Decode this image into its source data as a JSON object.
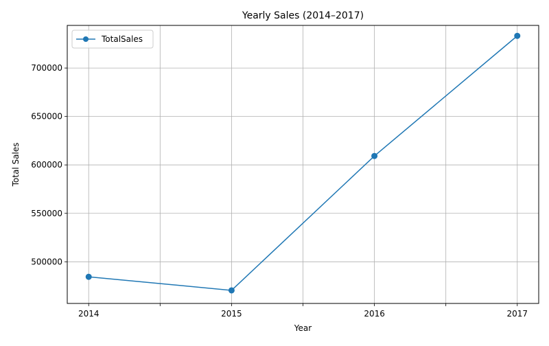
{
  "chart_data": {
    "type": "line",
    "title": "Yearly Sales (2014–2017)",
    "xlabel": "Year",
    "ylabel": "Total Sales",
    "categories": [
      "2014",
      "2015",
      "2016",
      "2017"
    ],
    "minor_x_ticks": [
      2014.5,
      2015.5,
      2016.5
    ],
    "x": [
      2014,
      2015,
      2016,
      2017
    ],
    "xlim": [
      2013.85,
      2017.15
    ],
    "ylim": [
      457000,
      744000
    ],
    "y_ticks": [
      500000,
      550000,
      600000,
      650000,
      700000
    ],
    "y_tick_labels": [
      "500000",
      "550000",
      "600000",
      "650000",
      "700000"
    ],
    "grid": true,
    "legend_position": "top-left",
    "series": [
      {
        "name": "TotalSales",
        "values": [
          484500,
          470500,
          609200,
          733200
        ],
        "color": "#1f77b4",
        "marker": "circle"
      }
    ]
  }
}
